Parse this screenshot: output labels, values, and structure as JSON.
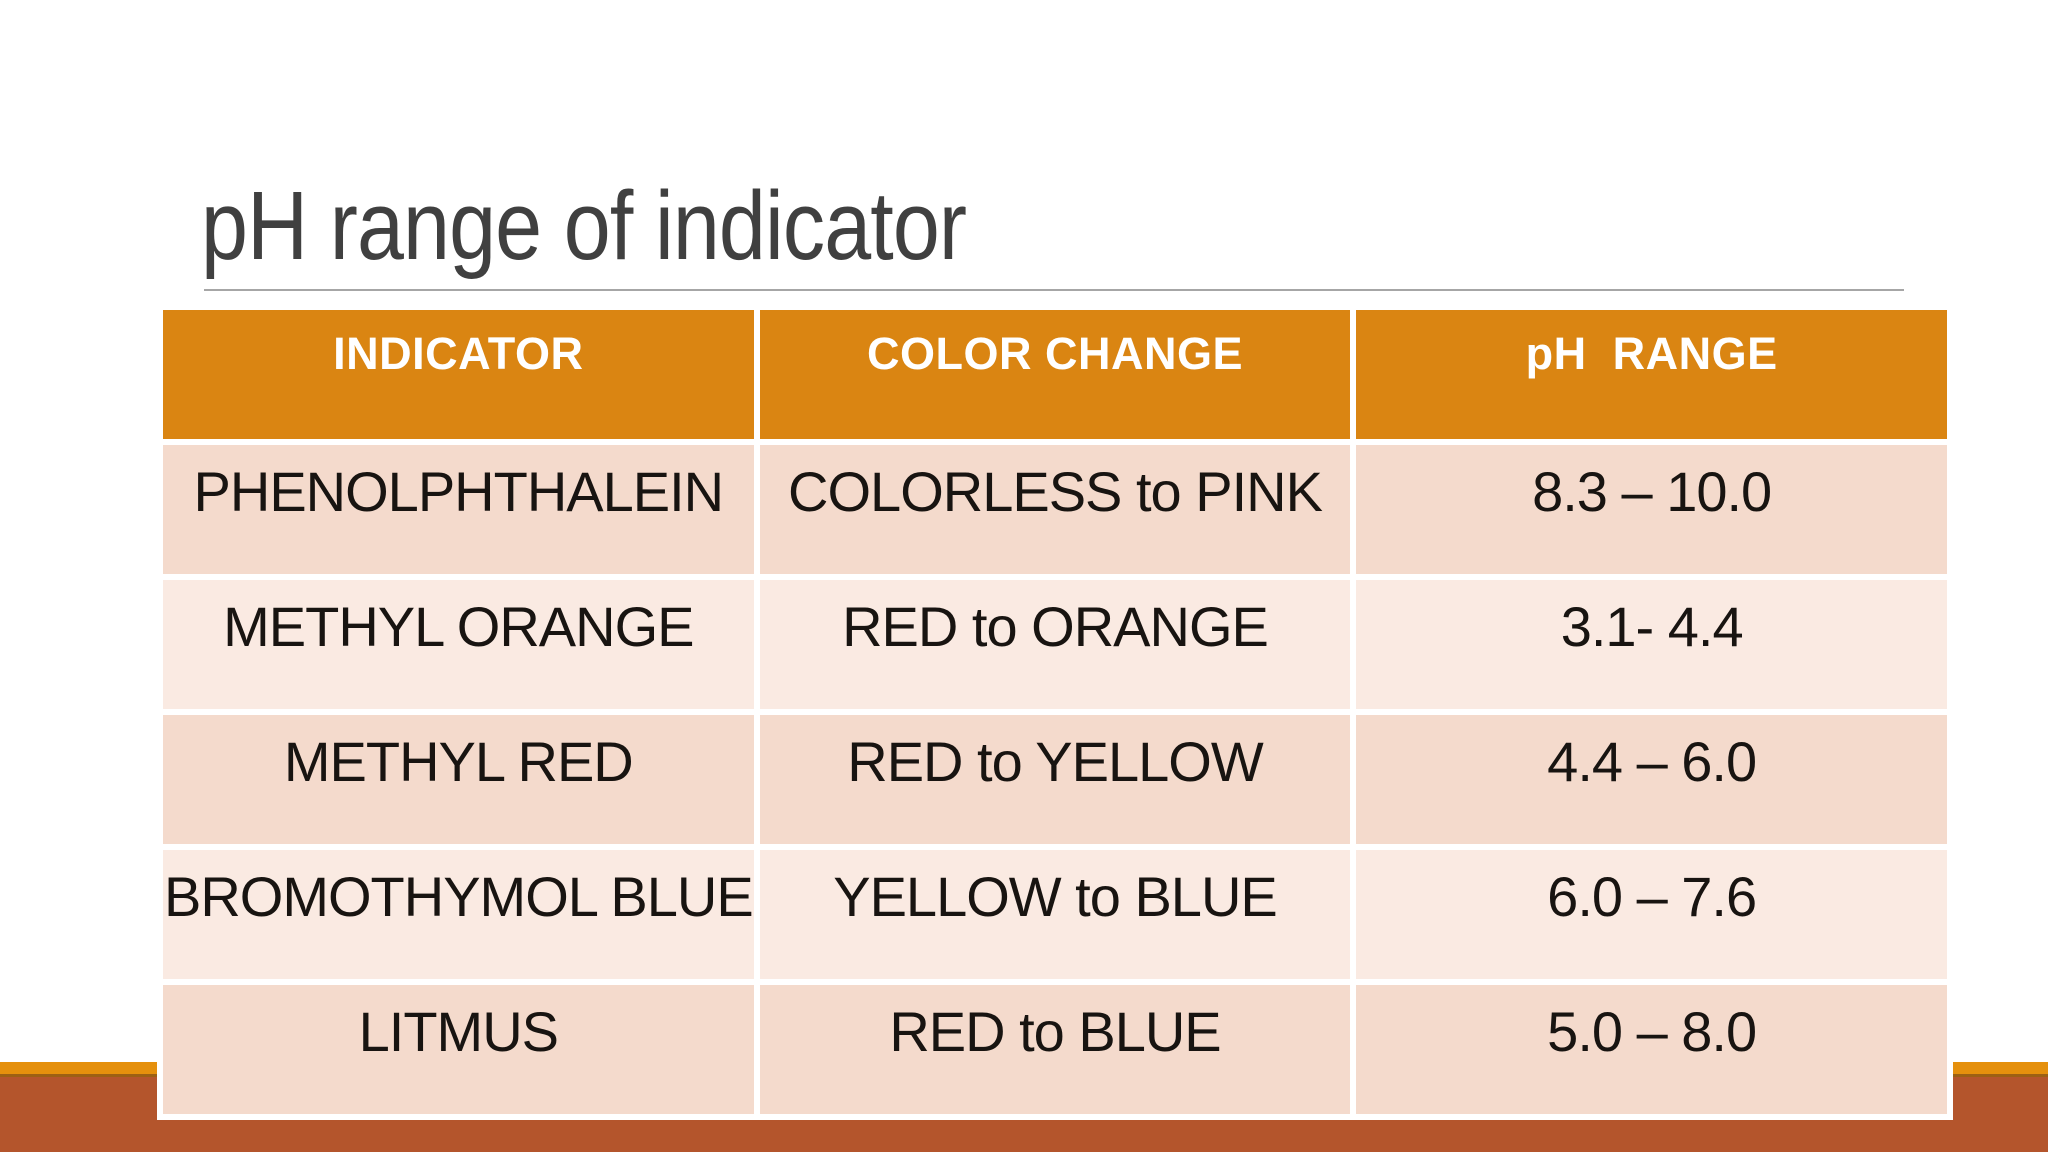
{
  "slide": {
    "title": "pH range of indicator",
    "table": {
      "headers": [
        "INDICATOR",
        "COLOR CHANGE",
        "pH  RANGE"
      ],
      "rows": [
        [
          "PHENOLPHTHALEIN",
          "COLORLESS to PINK",
          "8.3 – 10.0"
        ],
        [
          "METHYL ORANGE",
          "RED to ORANGE",
          "3.1- 4.4"
        ],
        [
          "METHYL RED",
          "RED to YELLOW",
          "4.4 – 6.0"
        ],
        [
          "BROMOTHYMOL BLUE",
          "YELLOW to BLUE",
          "6.0 – 7.6"
        ],
        [
          "LITMUS",
          "RED to BLUE",
          "5.0 – 8.0"
        ]
      ]
    },
    "colors": {
      "header_bg": "#DA8512",
      "row_odd_bg": "#F4DACC",
      "row_even_bg": "#FAEAE2",
      "accent_strip": "#E5900D",
      "footer_band": "#B4552C",
      "title_text": "#404040",
      "cell_text": "#181411",
      "underline": "#A6A6A6"
    }
  }
}
